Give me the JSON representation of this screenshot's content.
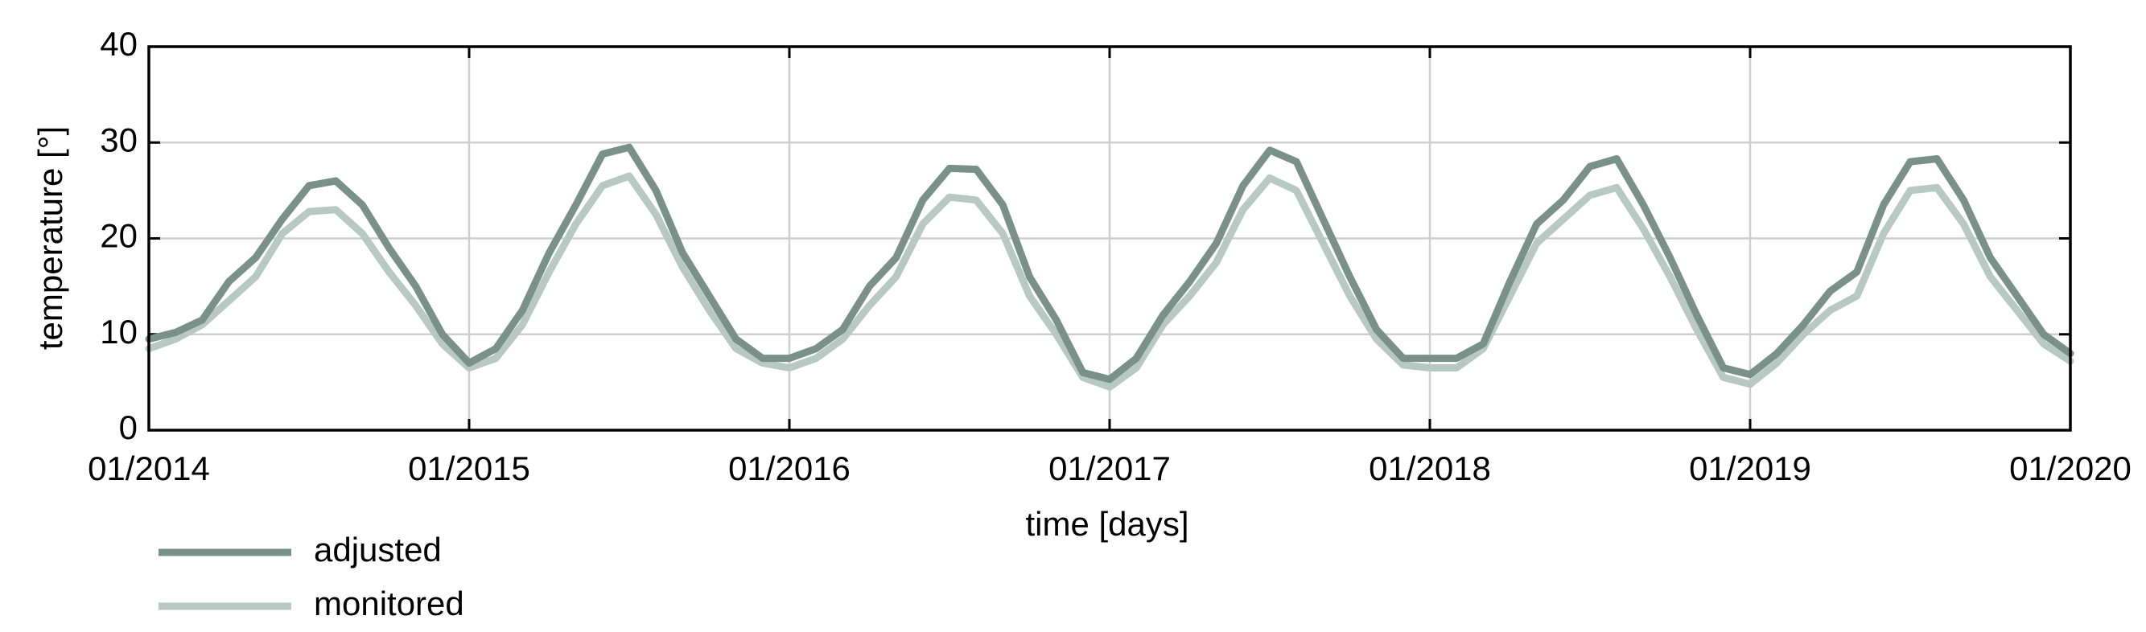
{
  "chart_data": {
    "type": "line",
    "xlabel": "time [days]",
    "ylabel": "temperature [°]",
    "x": [
      "01/2014",
      "02/2014",
      "03/2014",
      "04/2014",
      "05/2014",
      "06/2014",
      "07/2014",
      "08/2014",
      "09/2014",
      "10/2014",
      "11/2014",
      "12/2014",
      "01/2015",
      "02/2015",
      "03/2015",
      "04/2015",
      "05/2015",
      "06/2015",
      "07/2015",
      "08/2015",
      "09/2015",
      "10/2015",
      "11/2015",
      "12/2015",
      "01/2016",
      "02/2016",
      "03/2016",
      "04/2016",
      "05/2016",
      "06/2016",
      "07/2016",
      "08/2016",
      "09/2016",
      "10/2016",
      "11/2016",
      "12/2016",
      "01/2017",
      "02/2017",
      "03/2017",
      "04/2017",
      "05/2017",
      "06/2017",
      "07/2017",
      "08/2017",
      "09/2017",
      "10/2017",
      "11/2017",
      "12/2017",
      "01/2018",
      "02/2018",
      "03/2018",
      "04/2018",
      "05/2018",
      "06/2018",
      "07/2018",
      "08/2018",
      "09/2018",
      "10/2018",
      "11/2018",
      "12/2018",
      "01/2019",
      "02/2019",
      "03/2019",
      "04/2019",
      "05/2019",
      "06/2019",
      "07/2019",
      "08/2019",
      "09/2019",
      "10/2019",
      "11/2019",
      "12/2019",
      "01/2020"
    ],
    "series": [
      {
        "name": "adjusted",
        "color": "#7a918a",
        "values": [
          9.5,
          10.2,
          11.5,
          15.5,
          18,
          22,
          25.5,
          26,
          23.5,
          19,
          15,
          10,
          7,
          8.5,
          12.5,
          18.5,
          23.5,
          28.8,
          29.5,
          25,
          18.5,
          14,
          9.5,
          7.5,
          7.5,
          8.5,
          10.5,
          15,
          18,
          24,
          27.3,
          27.2,
          23.5,
          16,
          11.5,
          6,
          5.3,
          7.5,
          12,
          15.5,
          19.5,
          25.5,
          29.2,
          28,
          22,
          16,
          10.5,
          7.5,
          7.5,
          7.5,
          9,
          15.5,
          21.5,
          24,
          27.5,
          28.3,
          23.5,
          18,
          12,
          6.5,
          5.8,
          8,
          11,
          14.5,
          16.5,
          23.5,
          28,
          28.3,
          24,
          18,
          14,
          10,
          8
        ]
      },
      {
        "name": "monitored",
        "color": "#b8c8c2",
        "values": [
          8.5,
          9.5,
          11,
          13.5,
          16,
          20.5,
          22.8,
          23,
          20.5,
          16.5,
          13,
          9,
          6.5,
          7.5,
          11,
          16.5,
          21.5,
          25.5,
          26.5,
          22.5,
          17,
          12.5,
          8.5,
          7,
          6.5,
          7.5,
          9.5,
          13,
          16,
          21.5,
          24.3,
          24,
          20.5,
          14,
          10,
          5.5,
          4.5,
          6.5,
          11,
          14,
          17.5,
          23,
          26.3,
          25,
          19.5,
          14,
          9.5,
          6.8,
          6.5,
          6.5,
          8.5,
          14,
          19.5,
          22,
          24.5,
          25.3,
          21,
          16,
          10.5,
          5.5,
          4.8,
          7,
          10,
          12.5,
          14,
          20.5,
          25,
          25.3,
          21.5,
          16,
          12.5,
          9,
          7.2
        ]
      }
    ],
    "xlim": [
      "01/2014",
      "01/2020"
    ],
    "xticks": [
      "01/2014",
      "01/2015",
      "01/2016",
      "01/2017",
      "01/2018",
      "01/2019",
      "01/2020"
    ],
    "ylim": [
      0,
      40
    ],
    "yticks": [
      0,
      10,
      20,
      30,
      40
    ],
    "grid": true,
    "legend": "below-left"
  }
}
